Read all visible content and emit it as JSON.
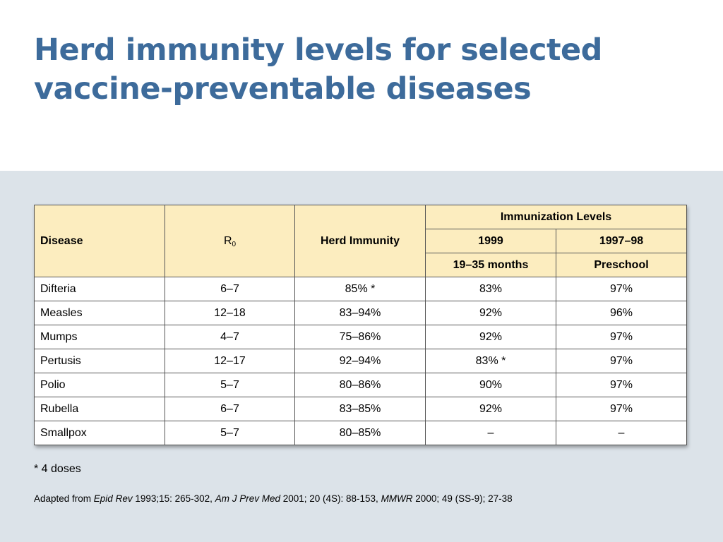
{
  "title": "Herd immunity levels for selected vaccine-preventable diseases",
  "table": {
    "headers": {
      "disease": "Disease",
      "r0_main": "R",
      "r0_sub": "0",
      "herd_immunity": "Herd Immunity",
      "immunization_levels": "Immunization Levels",
      "year_1999": "1999",
      "year_1997_98": "1997–98",
      "age_19_35": "19–35 months",
      "preschool": "Preschool"
    },
    "rows": [
      {
        "disease": "Difteria",
        "r0": "6–7",
        "herd": "85% *",
        "y1999": "83%",
        "preschool": "97%"
      },
      {
        "disease": "Measles",
        "r0": "12–18",
        "herd": "83–94%",
        "y1999": "92%",
        "preschool": "96%"
      },
      {
        "disease": "Mumps",
        "r0": "4–7",
        "herd": "75–86%",
        "y1999": "92%",
        "preschool": "97%"
      },
      {
        "disease": "Pertusis",
        "r0": "12–17",
        "herd": "92–94%",
        "y1999": "83% *",
        "preschool": "97%"
      },
      {
        "disease": "Polio",
        "r0": "5–7",
        "herd": "80–86%",
        "y1999": "90%",
        "preschool": "97%"
      },
      {
        "disease": "Rubella",
        "r0": "6–7",
        "herd": "83–85%",
        "y1999": "92%",
        "preschool": "97%"
      },
      {
        "disease": "Smallpox",
        "r0": "5–7",
        "herd": "80–85%",
        "y1999": "–",
        "preschool": "–"
      }
    ]
  },
  "footnote": "* 4 doses",
  "source": {
    "prefix": "Adapted from ",
    "ref1": "Epid Rev",
    "ref1_detail": " 1993;15: 265-302, ",
    "ref2": "Am J Prev Med",
    "ref2_detail": " 2001; 20 (4S): 88-153, ",
    "ref3": "MMWR",
    "ref3_detail": " 2000; 49 (SS-9); 27-38"
  },
  "colors": {
    "title": "#3d6b9b",
    "header_bg": "#fcedbf",
    "content_bg": "#dce3e9"
  }
}
